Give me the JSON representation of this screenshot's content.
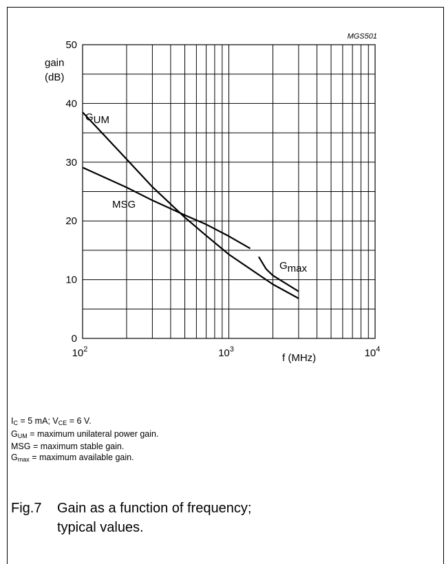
{
  "chart_data": {
    "type": "line",
    "code": "MGS501",
    "xscale": "log",
    "xlim": [
      100,
      10000
    ],
    "ylim": [
      0,
      50
    ],
    "ylabel": [
      "gain",
      "(dB)"
    ],
    "xlabel": "f (MHz)",
    "grid": true,
    "yticks": [
      "0",
      "10",
      "20",
      "30",
      "40",
      "50"
    ],
    "xticks": [
      {
        "base": "10",
        "exp": "2"
      },
      {
        "base": "10",
        "exp": "3"
      },
      {
        "base": "10",
        "exp": "4"
      }
    ],
    "series": [
      {
        "name": "G_UM",
        "label_main": "G",
        "label_sub": "UM",
        "x": [
          100,
          200,
          300,
          500,
          700,
          1000,
          2000,
          3000
        ],
        "y": [
          38.5,
          30.5,
          25.8,
          20.6,
          17.5,
          14.3,
          9.2,
          6.8
        ]
      },
      {
        "name": "MSG",
        "label_main": "MSG",
        "label_sub": "",
        "x": [
          100,
          200,
          300,
          500,
          700,
          1000,
          1400
        ],
        "y": [
          29.1,
          25.7,
          23.5,
          21.0,
          19.4,
          17.4,
          15.3
        ]
      },
      {
        "name": "G_max",
        "label_main": "G",
        "label_sub": "max",
        "x": [
          1600,
          1800,
          2000,
          3000
        ],
        "y": [
          13.9,
          11.8,
          10.7,
          8.0
        ]
      }
    ]
  },
  "notes": {
    "line1": {
      "a": "I",
      "a_sub": "C",
      "b": " = 5 mA; V",
      "b_sub": "CE",
      "c": " = 6 V."
    },
    "line2": {
      "a": "G",
      "a_sub": "UM",
      "b": " = maximum unilateral power gain."
    },
    "line3": {
      "text": "MSG = maximum stable gain."
    },
    "line4": {
      "a": "G",
      "a_sub": "max",
      "b": " = maximum available gain."
    }
  },
  "caption": {
    "number": "Fig.7",
    "text": "Gain as a function of frequency; typical values."
  }
}
